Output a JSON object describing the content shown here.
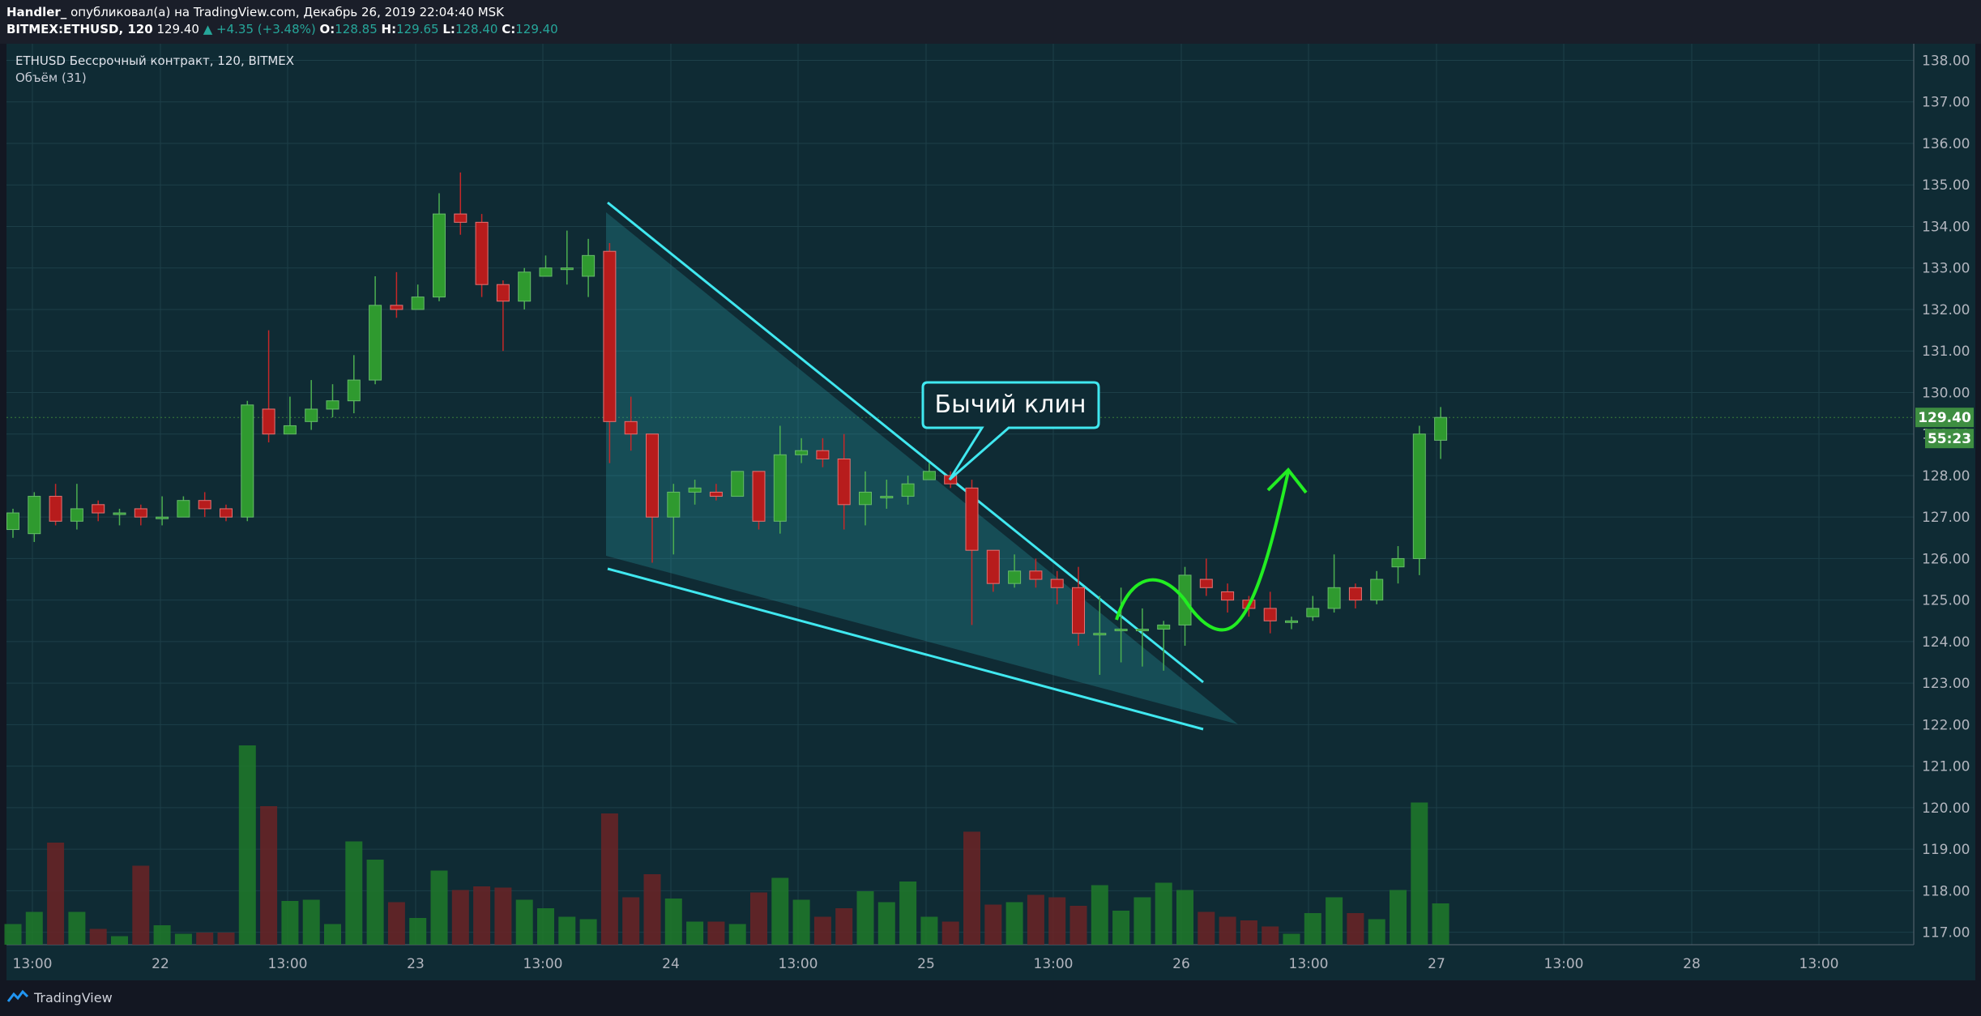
{
  "header": {
    "author": "Handler_",
    "published": "опубликовал(а) на TradingView.com, Декабрь 26, 2019 22:04:40 MSK",
    "symbol": "BITMEX:ETHUSD, 120",
    "last": "129.40",
    "change": "▲ +4.35 (+3.48%)",
    "o_label": "O:",
    "o": "128.85",
    "h_label": "H:",
    "h": "129.65",
    "l_label": "L:",
    "l": "128.40",
    "c_label": "C:",
    "c": "129.40"
  },
  "legend": {
    "title": "ETHUSD Бессрочный контракт, 120, BITMEX",
    "volume": "Объём (31)"
  },
  "annotation": {
    "label": "Бычий клин"
  },
  "price_badge": {
    "price": "129.40",
    "countdown": "55:23"
  },
  "footer": {
    "brand": "TradingView"
  },
  "colors": {
    "up": "#26a69a",
    "down": "#ef5350",
    "candle_up": "#2f9a2f",
    "candle_down": "#b71c1c",
    "wedge": "#40e8f0",
    "arrow": "#22ee22"
  },
  "chart_data": {
    "type": "candlestick",
    "ylim": [
      116.7,
      138.4
    ],
    "y_ticks": [
      "117.00",
      "118.00",
      "119.00",
      "120.00",
      "121.00",
      "122.00",
      "123.00",
      "124.00",
      "125.00",
      "126.00",
      "127.00",
      "128.00",
      "129.00",
      "130.00",
      "131.00",
      "132.00",
      "133.00",
      "134.00",
      "135.00",
      "136.00",
      "137.00",
      "138.00"
    ],
    "x_tick_labels": [
      "13:00",
      "22",
      "13:00",
      "23",
      "13:00",
      "24",
      "13:00",
      "25",
      "13:00",
      "26",
      "13:00",
      "27",
      "13:00",
      "28",
      "13:00"
    ],
    "candles": [
      [
        126.7,
        127.1,
        126.5,
        127.2,
        0.85
      ],
      [
        126.6,
        127.5,
        126.4,
        127.6,
        1.35
      ],
      [
        127.5,
        126.9,
        126.8,
        127.8,
        4.2
      ],
      [
        126.9,
        127.2,
        126.7,
        127.8,
        1.35
      ],
      [
        127.3,
        127.1,
        126.9,
        127.4,
        0.65
      ],
      [
        127.1,
        127.1,
        126.8,
        127.2,
        0.35
      ],
      [
        127.2,
        127.0,
        126.8,
        127.3,
        3.25
      ],
      [
        127.0,
        127.0,
        126.8,
        127.5,
        0.8
      ],
      [
        127.0,
        127.4,
        127.0,
        127.5,
        0.45
      ],
      [
        127.4,
        127.2,
        127.0,
        127.6,
        0.5
      ],
      [
        127.2,
        127.0,
        126.9,
        127.3,
        0.5
      ],
      [
        127.0,
        129.7,
        126.9,
        129.8,
        8.2
      ],
      [
        129.6,
        129.0,
        128.8,
        131.5,
        5.7
      ],
      [
        129.0,
        129.2,
        129.0,
        129.9,
        1.8
      ],
      [
        129.3,
        129.6,
        129.1,
        130.3,
        1.85
      ],
      [
        129.6,
        129.8,
        129.4,
        130.2,
        0.85
      ],
      [
        129.8,
        130.3,
        129.5,
        130.9,
        4.25
      ],
      [
        130.3,
        132.1,
        130.2,
        132.8,
        3.5
      ],
      [
        132.1,
        132.0,
        131.8,
        132.9,
        1.75
      ],
      [
        132.0,
        132.3,
        132.0,
        132.6,
        1.1
      ],
      [
        132.3,
        134.3,
        132.2,
        134.8,
        3.05
      ],
      [
        134.3,
        134.1,
        133.8,
        135.3,
        2.25
      ],
      [
        134.1,
        132.6,
        132.3,
        134.3,
        2.4
      ],
      [
        132.6,
        132.2,
        131.0,
        132.7,
        2.35
      ],
      [
        132.2,
        132.9,
        132.0,
        133.0,
        1.85
      ],
      [
        132.8,
        133.0,
        132.8,
        133.3,
        1.5
      ],
      [
        133.0,
        133.0,
        132.6,
        133.9,
        1.15
      ],
      [
        132.8,
        133.3,
        132.3,
        133.7,
        1.05
      ],
      [
        133.4,
        129.3,
        128.3,
        133.6,
        5.4
      ],
      [
        129.3,
        129.0,
        128.6,
        129.9,
        1.95
      ],
      [
        129.0,
        127.0,
        125.9,
        129.0,
        2.9
      ],
      [
        127.0,
        127.6,
        126.1,
        127.8,
        1.9
      ],
      [
        127.6,
        127.7,
        127.3,
        127.9,
        0.95
      ],
      [
        127.6,
        127.5,
        127.4,
        127.8,
        0.95
      ],
      [
        127.5,
        128.1,
        127.5,
        128.1,
        0.85
      ],
      [
        128.1,
        126.9,
        126.7,
        128.1,
        2.15
      ],
      [
        126.9,
        128.5,
        126.6,
        129.2,
        2.75
      ],
      [
        128.5,
        128.6,
        128.3,
        128.9,
        1.85
      ],
      [
        128.6,
        128.4,
        128.2,
        128.9,
        1.15
      ],
      [
        128.4,
        127.3,
        126.7,
        129.0,
        1.5
      ],
      [
        127.3,
        127.6,
        126.8,
        128.1,
        2.2
      ],
      [
        127.5,
        127.5,
        127.2,
        127.9,
        1.75
      ],
      [
        127.5,
        127.8,
        127.3,
        128.0,
        2.6
      ],
      [
        127.9,
        128.1,
        127.9,
        128.3,
        1.15
      ],
      [
        128.0,
        127.8,
        127.7,
        128.1,
        0.95
      ],
      [
        127.7,
        126.2,
        124.4,
        127.9,
        4.65
      ],
      [
        126.2,
        125.4,
        125.2,
        126.2,
        1.65
      ],
      [
        125.4,
        125.7,
        125.3,
        126.1,
        1.75
      ],
      [
        125.7,
        125.5,
        125.3,
        126.0,
        2.05
      ],
      [
        125.5,
        125.3,
        124.9,
        125.7,
        1.95
      ],
      [
        125.3,
        124.2,
        123.9,
        125.8,
        1.6
      ],
      [
        124.2,
        124.2,
        123.2,
        125.1,
        2.45
      ],
      [
        124.3,
        124.3,
        123.5,
        125.3,
        1.4
      ],
      [
        124.3,
        124.3,
        123.4,
        124.8,
        1.95
      ],
      [
        124.3,
        124.4,
        123.3,
        124.5,
        2.55
      ],
      [
        124.4,
        125.6,
        123.9,
        125.8,
        2.25
      ],
      [
        125.5,
        125.3,
        125.1,
        126.0,
        1.35
      ],
      [
        125.2,
        125.0,
        124.7,
        125.4,
        1.15
      ],
      [
        125.0,
        124.8,
        124.6,
        125.1,
        1.0
      ],
      [
        124.8,
        124.5,
        124.2,
        125.2,
        0.75
      ],
      [
        124.5,
        124.5,
        124.3,
        124.6,
        0.45
      ],
      [
        124.6,
        124.8,
        124.5,
        125.1,
        1.3
      ],
      [
        124.8,
        125.3,
        124.7,
        126.1,
        1.95
      ],
      [
        125.3,
        125.0,
        124.8,
        125.4,
        1.3
      ],
      [
        125.0,
        125.5,
        124.9,
        125.7,
        1.05
      ],
      [
        125.8,
        126.0,
        125.4,
        126.3,
        2.25
      ],
      [
        126.0,
        129.0,
        125.6,
        129.2,
        5.85
      ],
      [
        128.85,
        129.4,
        128.4,
        129.65,
        1.7
      ]
    ],
    "volume_max": 6.0
  }
}
